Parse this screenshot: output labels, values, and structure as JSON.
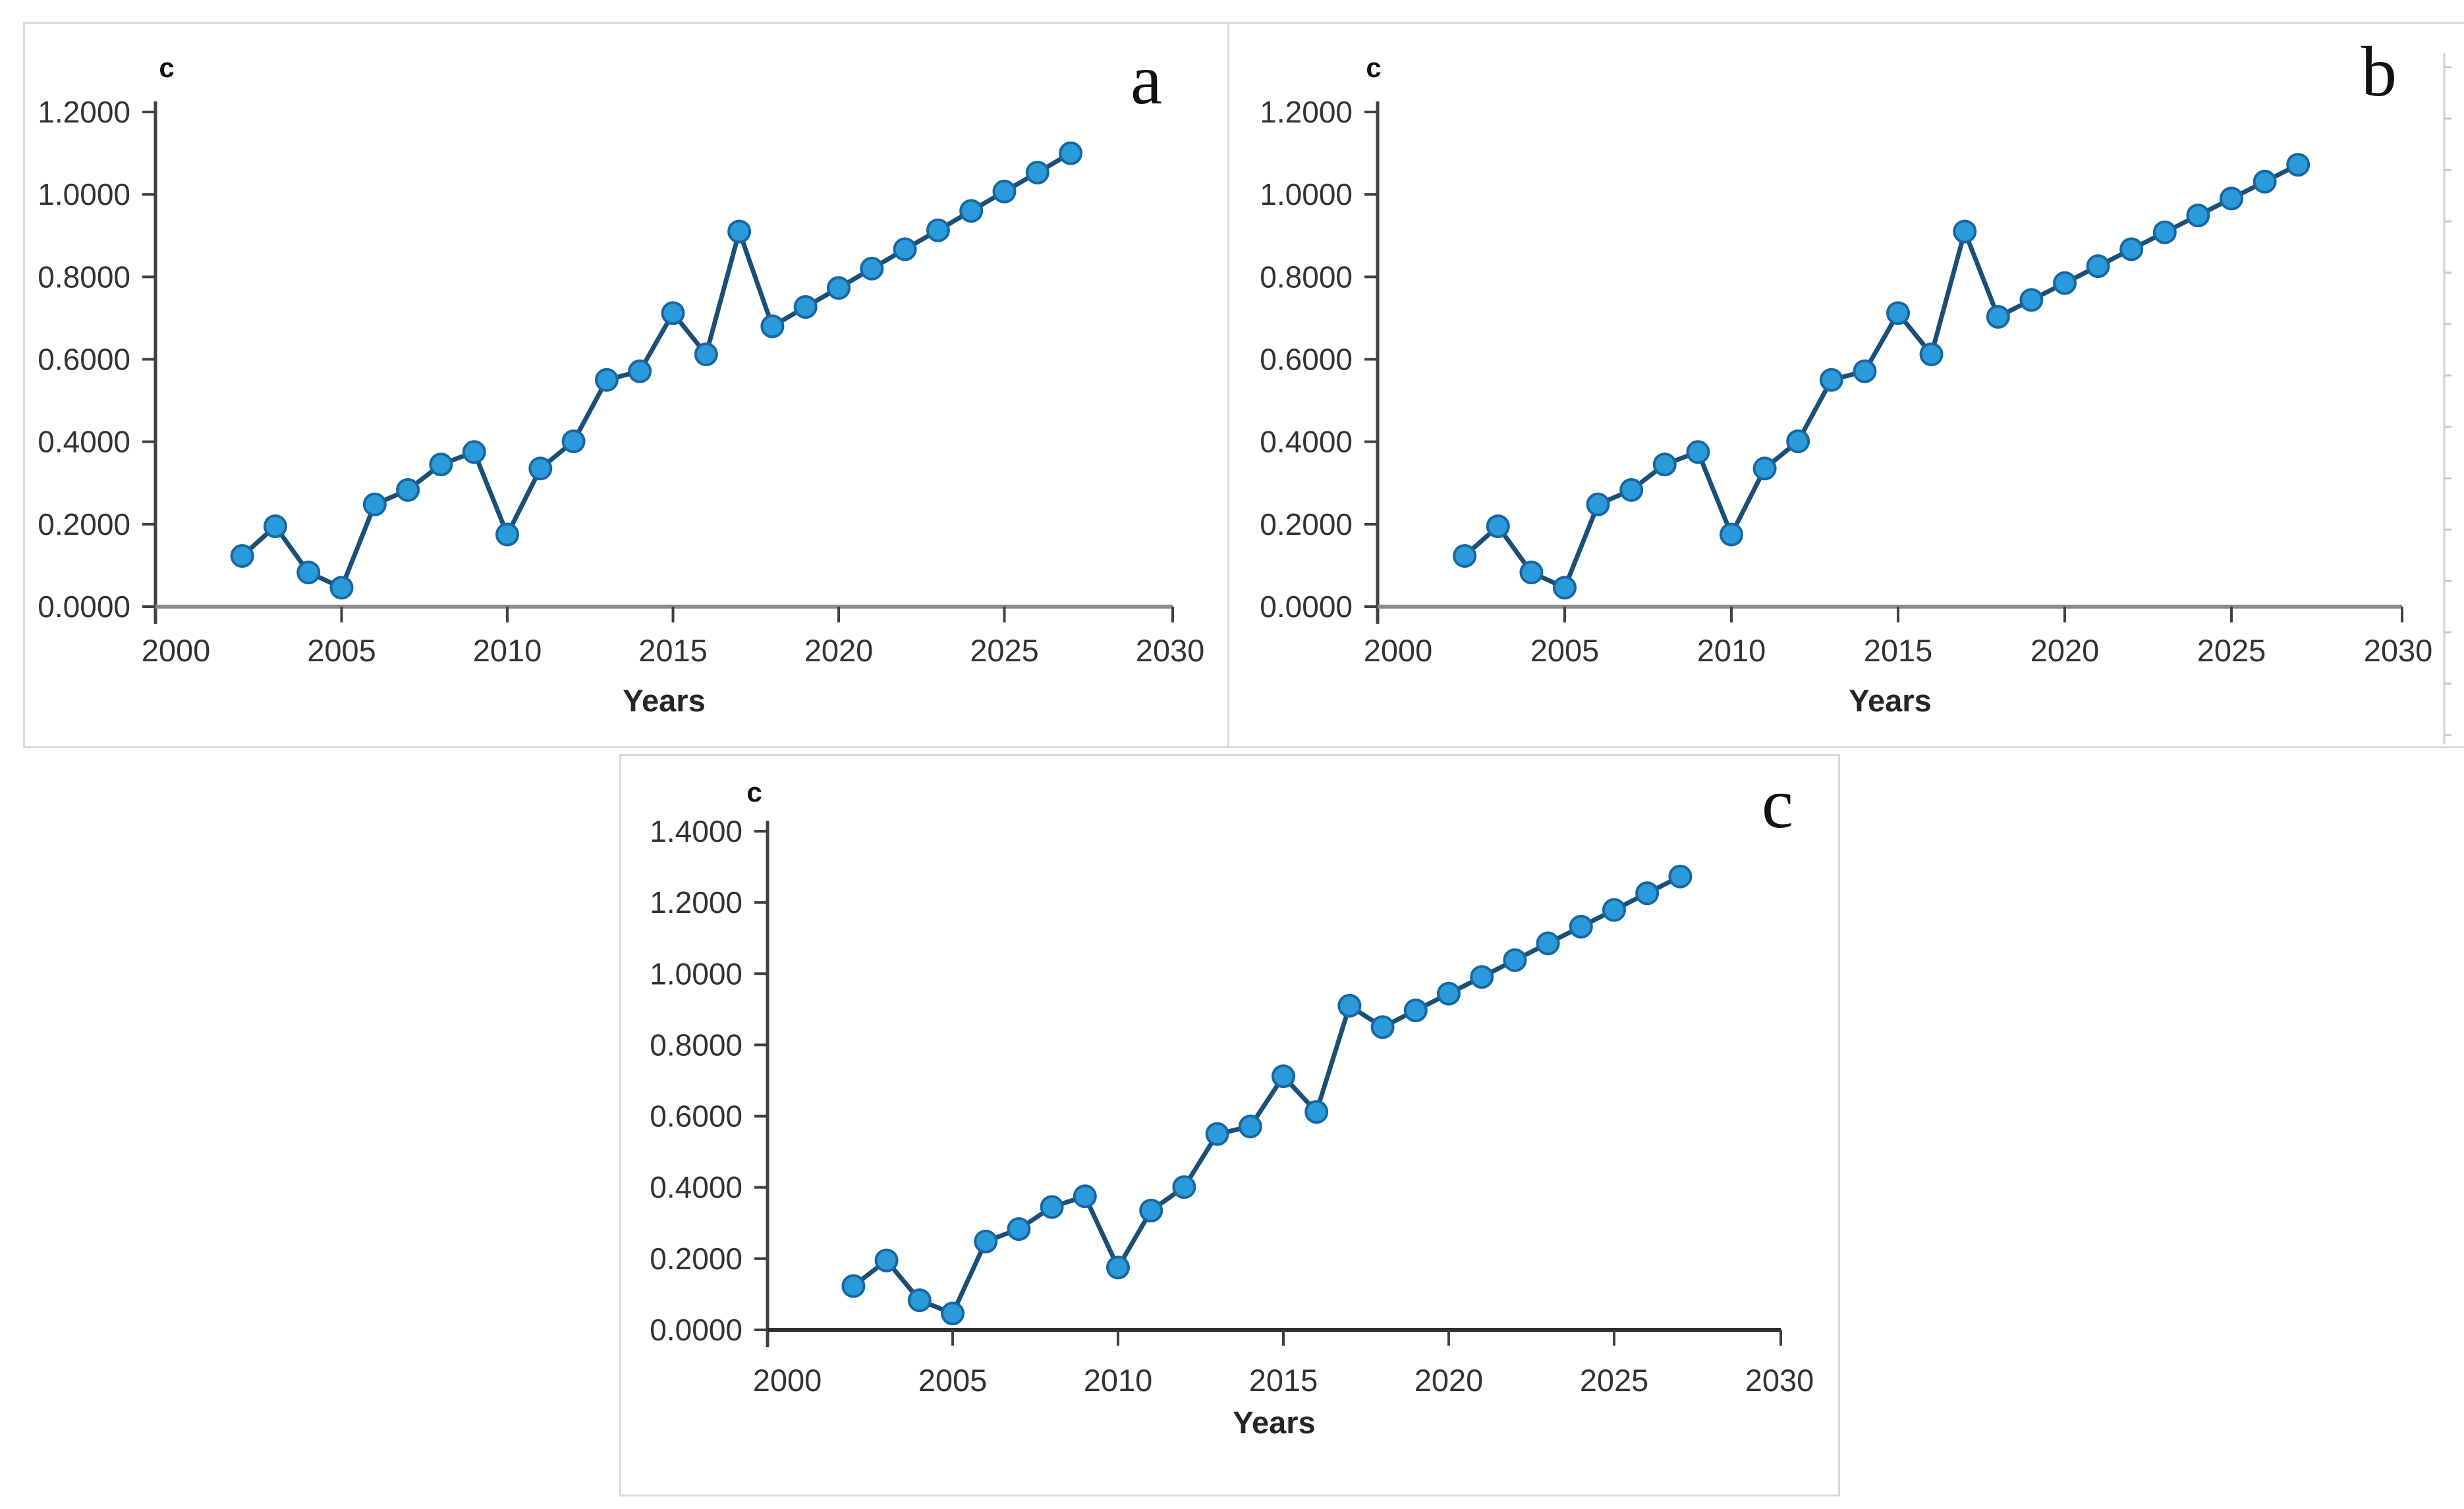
{
  "figure": {
    "background": "#ffffff",
    "panel_border_color": "#d9d9d9"
  },
  "colors": {
    "series_line": "#1b4f77",
    "marker_fill": "#2b9ada",
    "marker_stroke": "#1668a2",
    "y_axis": "#404040",
    "x_axis_ab": "#8a8a8a",
    "x_axis_c": "#2f2f2f",
    "tick": "#404040",
    "tick_label": "#333333",
    "panel_border": "#d9d9d9"
  },
  "chart_data": [
    {
      "id": "a",
      "panel_label": "a",
      "type": "line",
      "title": "c",
      "xlabel": "Years",
      "ylabel": "",
      "grid": false,
      "legend": "none",
      "xlim": [
        2000,
        2030
      ],
      "ylim": [
        0,
        1.2
      ],
      "x_ticks": [
        2000,
        2005,
        2010,
        2015,
        2020,
        2025,
        2030
      ],
      "y_tick_labels": [
        "0.0000",
        "0.2000",
        "0.4000",
        "0.6000",
        "0.8000",
        "1.0000",
        "1.2000"
      ],
      "x": [
        2002,
        2003,
        2004,
        2005,
        2006,
        2007,
        2008,
        2009,
        2010,
        2011,
        2012,
        2013,
        2014,
        2015,
        2016,
        2017,
        2018,
        2019,
        2020,
        2021,
        2022,
        2023,
        2024,
        2025,
        2026,
        2027
      ],
      "y": [
        0.123,
        0.195,
        0.083,
        0.046,
        0.248,
        0.283,
        0.345,
        0.375,
        0.175,
        0.335,
        0.401,
        0.55,
        0.571,
        0.712,
        0.612,
        0.91,
        0.68,
        0.727,
        0.773,
        0.82,
        0.867,
        0.913,
        0.96,
        1.007,
        1.053,
        1.1
      ]
    },
    {
      "id": "b",
      "panel_label": "b",
      "type": "line",
      "title": "c",
      "xlabel": "Years",
      "ylabel": "",
      "grid": false,
      "legend": "none",
      "xlim": [
        2000,
        2030
      ],
      "ylim": [
        0,
        1.2
      ],
      "x_ticks": [
        2000,
        2005,
        2010,
        2015,
        2020,
        2025,
        2030
      ],
      "y_tick_labels": [
        "0.0000",
        "0.2000",
        "0.4000",
        "0.6000",
        "0.8000",
        "1.0000",
        "1.2000"
      ],
      "x": [
        2002,
        2003,
        2004,
        2005,
        2006,
        2007,
        2008,
        2009,
        2010,
        2011,
        2012,
        2013,
        2014,
        2015,
        2016,
        2017,
        2018,
        2019,
        2020,
        2021,
        2022,
        2023,
        2024,
        2025,
        2026,
        2027
      ],
      "y": [
        0.123,
        0.195,
        0.083,
        0.046,
        0.248,
        0.283,
        0.345,
        0.375,
        0.175,
        0.335,
        0.401,
        0.55,
        0.571,
        0.712,
        0.612,
        0.91,
        0.703,
        0.744,
        0.785,
        0.826,
        0.867,
        0.908,
        0.949,
        0.99,
        1.031,
        1.072
      ]
    },
    {
      "id": "c",
      "panel_label": "c",
      "type": "line",
      "title": "c",
      "xlabel": "Years",
      "ylabel": "",
      "grid": false,
      "legend": "none",
      "xlim": [
        2000,
        2030
      ],
      "ylim": [
        0,
        1.4
      ],
      "x_ticks": [
        2000,
        2005,
        2010,
        2015,
        2020,
        2025,
        2030
      ],
      "y_tick_labels": [
        "0.0000",
        "0.2000",
        "0.4000",
        "0.6000",
        "0.8000",
        "1.0000",
        "1.2000",
        "1.4000"
      ],
      "x": [
        2002,
        2003,
        2004,
        2005,
        2006,
        2007,
        2008,
        2009,
        2010,
        2011,
        2012,
        2013,
        2014,
        2015,
        2016,
        2017,
        2018,
        2019,
        2020,
        2021,
        2022,
        2023,
        2024,
        2025,
        2026,
        2027
      ],
      "y": [
        0.123,
        0.195,
        0.083,
        0.046,
        0.248,
        0.283,
        0.345,
        0.375,
        0.175,
        0.335,
        0.401,
        0.55,
        0.571,
        0.712,
        0.612,
        0.91,
        0.85,
        0.897,
        0.944,
        0.991,
        1.038,
        1.085,
        1.132,
        1.179,
        1.226,
        1.273
      ]
    }
  ]
}
